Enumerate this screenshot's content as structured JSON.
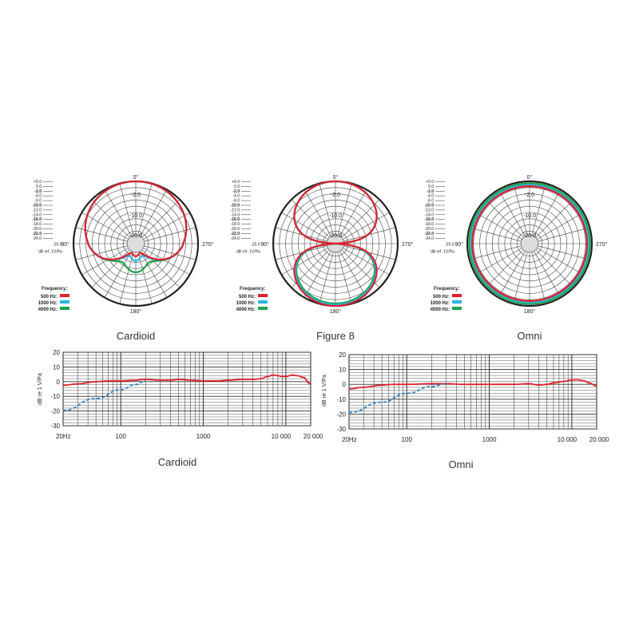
{
  "polar_common": {
    "angle_labels": [
      "0°",
      "90°",
      "270°",
      "180°"
    ],
    "ring_labels": [
      "-2.0",
      "-10.0",
      "-20.0"
    ],
    "scale_labels": [
      "+5.0",
      "0.0",
      "-2.0",
      "-4.0",
      "-6.0",
      "-10.0",
      "-12.0",
      "-14.0",
      "-16.0",
      "-18.0",
      "-20.0",
      "-22.0",
      "-24.0"
    ],
    "center_scale": "-25.0",
    "unit": "dB ref. 1V/Pa",
    "legend_title": "Frequency:",
    "legend_items": [
      {
        "label": "500 Hz:",
        "color": "#e0202a"
      },
      {
        "label": "1000 Hz:",
        "color": "#27b4e6"
      },
      {
        "label": "4000 Hz:",
        "color": "#1aa34a"
      }
    ]
  },
  "fr_common": {
    "ylabel": "dB re 1 V/Pa",
    "y_ticks": [
      "20",
      "10",
      "0",
      "-10",
      "-20",
      "-30"
    ],
    "x_ticks": [
      "20Hz",
      "100",
      "1000",
      "10 000",
      "20 000"
    ]
  },
  "chart_data": [
    {
      "type": "polar",
      "caption": "Cardioid",
      "r_range_db": [
        -25,
        0
      ],
      "series": [
        {
          "name": "500 Hz:",
          "pattern": "cardioid",
          "rear_db": -21
        },
        {
          "name": "1000 Hz:",
          "pattern": "cardioid",
          "rear_db": -19
        },
        {
          "name": "4000 Hz:",
          "pattern": "cardioid",
          "rear_db": -14
        }
      ]
    },
    {
      "type": "polar",
      "caption": "Figure 8",
      "r_range_db": [
        -25,
        0
      ],
      "series": [
        {
          "name": "500 Hz:",
          "pattern": "figure8",
          "rear_db": 0
        },
        {
          "name": "1000 Hz:",
          "pattern": "figure8",
          "rear_db": -0.5
        },
        {
          "name": "4000 Hz:",
          "pattern": "figure8",
          "rear_db": -1
        }
      ]
    },
    {
      "type": "polar",
      "caption": "Omni",
      "r_range_db": [
        -25,
        0
      ],
      "series": [
        {
          "name": "500 Hz:",
          "pattern": "omni",
          "level_db": -2
        },
        {
          "name": "1000 Hz:",
          "pattern": "omni",
          "level_db": -1.5
        },
        {
          "name": "4000 Hz:",
          "pattern": "omni",
          "level_db": -0.8
        }
      ]
    },
    {
      "type": "line",
      "caption": "Cardioid",
      "xscale": "log",
      "xlim": [
        20,
        20000
      ],
      "ylim": [
        -30,
        20
      ],
      "series": [
        {
          "style": "solid",
          "color": "#e0202a",
          "x": [
            20,
            30,
            50,
            70,
            100,
            150,
            200,
            300,
            400,
            500,
            700,
            1000,
            1500,
            2000,
            3000,
            4000,
            5000,
            6000,
            7000,
            8000,
            9000,
            10000,
            12000,
            14000,
            16000,
            20000
          ],
          "y": [
            -2.5,
            -1.5,
            0,
            0.5,
            0.5,
            1,
            1.5,
            1,
            1,
            1.5,
            1,
            0.5,
            0.5,
            1,
            1.5,
            1.5,
            2,
            3.5,
            4.5,
            4,
            3.5,
            3.5,
            4.5,
            4,
            3,
            -1.5
          ]
        },
        {
          "style": "dashed",
          "color": "#2a7fc0",
          "x": [
            20,
            50,
            100,
            150,
            200
          ],
          "y": [
            -19.5,
            -11.5,
            -5.5,
            -2,
            0.5
          ]
        }
      ]
    },
    {
      "type": "line",
      "caption": "Omni",
      "xscale": "log",
      "xlim": [
        20,
        20000
      ],
      "ylim": [
        -30,
        20
      ],
      "series": [
        {
          "style": "solid",
          "color": "#e0202a",
          "x": [
            20,
            30,
            50,
            70,
            100,
            200,
            300,
            500,
            1000,
            2000,
            3000,
            4000,
            5000,
            6000,
            8000,
            10000,
            12000,
            14000,
            16000,
            20000
          ],
          "y": [
            -3,
            -2,
            -0.5,
            0,
            0,
            0.5,
            0.5,
            0,
            0,
            0,
            0.5,
            -0.5,
            0,
            1,
            2,
            3,
            3,
            2.5,
            1,
            -1
          ]
        },
        {
          "style": "dashed",
          "color": "#2a7fc0",
          "x": [
            20,
            50,
            100,
            200,
            300
          ],
          "y": [
            -19,
            -12,
            -6,
            -1.5,
            0.5
          ]
        }
      ]
    }
  ]
}
